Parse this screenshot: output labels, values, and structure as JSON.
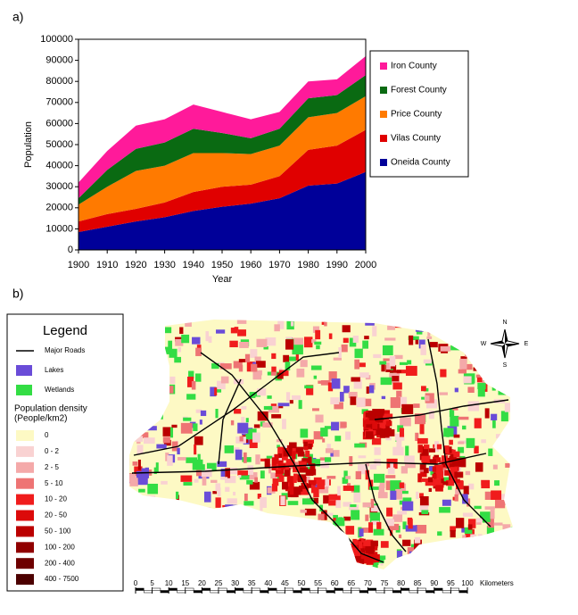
{
  "chart_data": {
    "type": "stacked_area",
    "panel_label": "a)",
    "x_label": "Year",
    "y_label": "Population",
    "x": [
      1900,
      1910,
      1920,
      1930,
      1940,
      1950,
      1960,
      1970,
      1980,
      1990,
      2000
    ],
    "xlim": [
      1900,
      2000
    ],
    "xticks": [
      1900,
      1910,
      1920,
      1930,
      1940,
      1950,
      1960,
      1970,
      1980,
      1990,
      2000
    ],
    "ylim": [
      0,
      100000
    ],
    "yticks": [
      0,
      10000,
      20000,
      30000,
      40000,
      50000,
      60000,
      70000,
      80000,
      90000,
      100000
    ],
    "grid": false,
    "legend": "right",
    "series": [
      {
        "name": "Oneida County",
        "color": "#000099",
        "values": [
          8500,
          11000,
          13500,
          15500,
          18500,
          20500,
          22000,
          24500,
          30500,
          31500,
          37000
        ]
      },
      {
        "name": "Vilas County",
        "color": "#e00000",
        "values": [
          5000,
          6000,
          6000,
          7000,
          9000,
          9500,
          9000,
          10500,
          17000,
          18000,
          20000
        ]
      },
      {
        "name": "Price County",
        "color": "#ff7a00",
        "values": [
          8000,
          13000,
          18000,
          17500,
          18500,
          16000,
          14500,
          14500,
          15500,
          15500,
          16000
        ]
      },
      {
        "name": "Forest County",
        "color": "#0a6a12",
        "values": [
          3000,
          8000,
          10500,
          11000,
          11500,
          9500,
          7500,
          8000,
          9000,
          8500,
          10000
        ]
      },
      {
        "name": "Iron County",
        "color": "#ff1a9a",
        "values": [
          7500,
          9000,
          11000,
          11000,
          11500,
          10000,
          9000,
          8000,
          8000,
          7500,
          9000
        ]
      }
    ]
  },
  "map": {
    "panel_label": "b)",
    "legend_title": "Legend",
    "roads": "Major Roads",
    "lakes": {
      "label": "Lakes",
      "color": "#6a4cd8"
    },
    "wetlands": {
      "label": "Wetlands",
      "color": "#33dd44"
    },
    "density_title": [
      "Population density",
      "(People/km2)"
    ],
    "classes": [
      {
        "label": "0",
        "color": "#fdf9c4"
      },
      {
        "label": "0 - 2",
        "color": "#f9d2d2"
      },
      {
        "label": "2 - 5",
        "color": "#f4a9a9"
      },
      {
        "label": "5 - 10",
        "color": "#ee7474"
      },
      {
        "label": "10 - 20",
        "color": "#f01c1c"
      },
      {
        "label": "20 - 50",
        "color": "#dc0a0a"
      },
      {
        "label": "50 - 100",
        "color": "#bb0000"
      },
      {
        "label": "100 - 200",
        "color": "#900000"
      },
      {
        "label": "200 - 400",
        "color": "#6e0000"
      },
      {
        "label": "400 - 7500",
        "color": "#4c0000"
      }
    ],
    "compass": {
      "n": "N",
      "e": "E",
      "s": "S",
      "w": "W"
    },
    "scale_ticks": [
      0,
      5,
      10,
      15,
      20,
      25,
      30,
      35,
      40,
      45,
      50,
      55,
      60,
      65,
      70,
      75,
      80,
      85,
      90,
      95,
      100
    ],
    "scale_unit": "Kilometers"
  }
}
